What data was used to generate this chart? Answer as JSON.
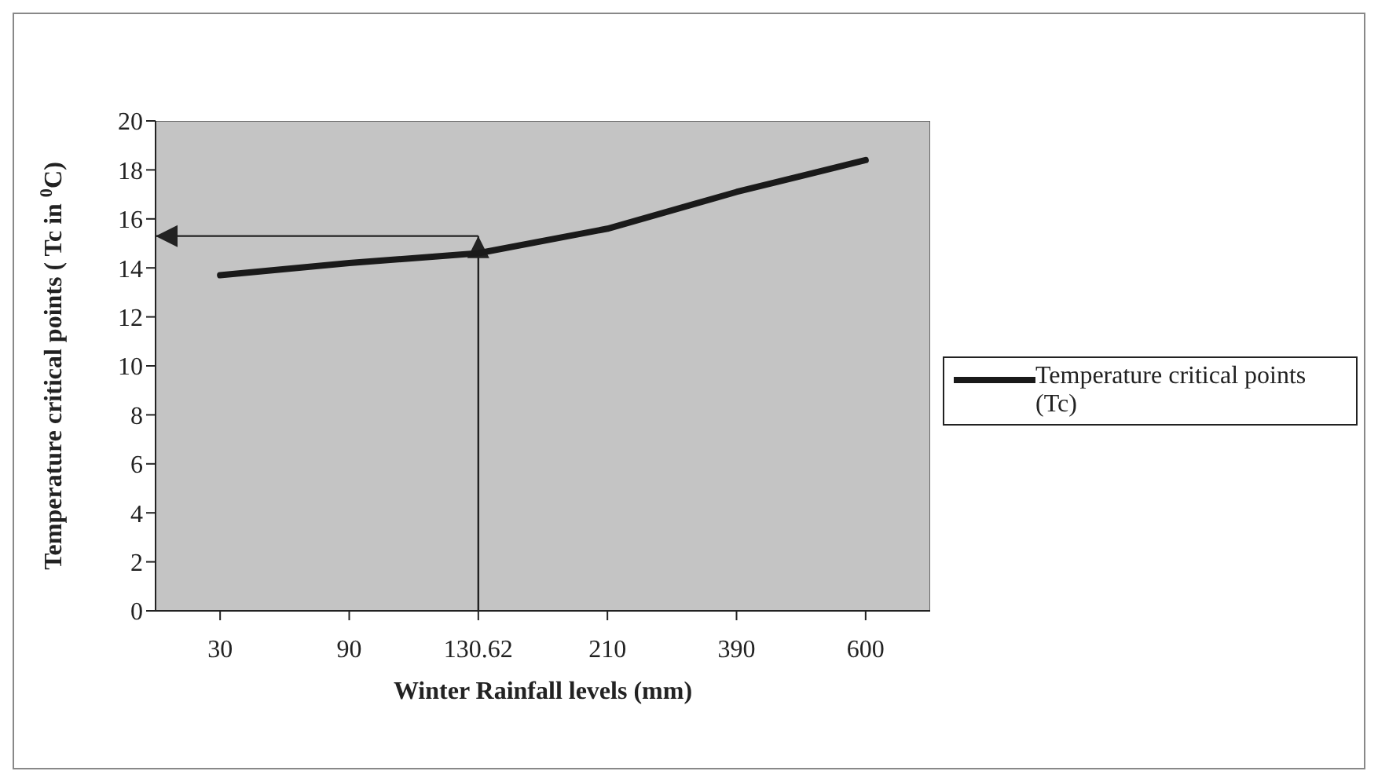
{
  "chart_data": {
    "type": "line",
    "xlabel": "Winter Rainfall levels (mm)",
    "ylabel": "Temperature critical points ( Tc in $^{0}$C)",
    "categories": [
      "30",
      "90",
      "130.62",
      "210",
      "390",
      "600"
    ],
    "series": [
      {
        "name": "Temperature critical points (Tc)",
        "color": "#1a1a1a",
        "values": [
          13.7,
          14.2,
          14.6,
          15.6,
          17.1,
          18.4
        ]
      }
    ],
    "ref_lines": [
      {
        "axis": "x",
        "value": "130.62",
        "color": "#222222",
        "line_style": "solid"
      },
      {
        "axis": "y",
        "value": 15.3,
        "color": "#222222",
        "line_style": "solid"
      }
    ],
    "ylim": [
      0,
      20
    ],
    "yticks": [
      0,
      2,
      4,
      6,
      8,
      10,
      12,
      14,
      16,
      18,
      20
    ],
    "grid": false,
    "legend": "right",
    "marker": "none",
    "line_style": "solid"
  }
}
